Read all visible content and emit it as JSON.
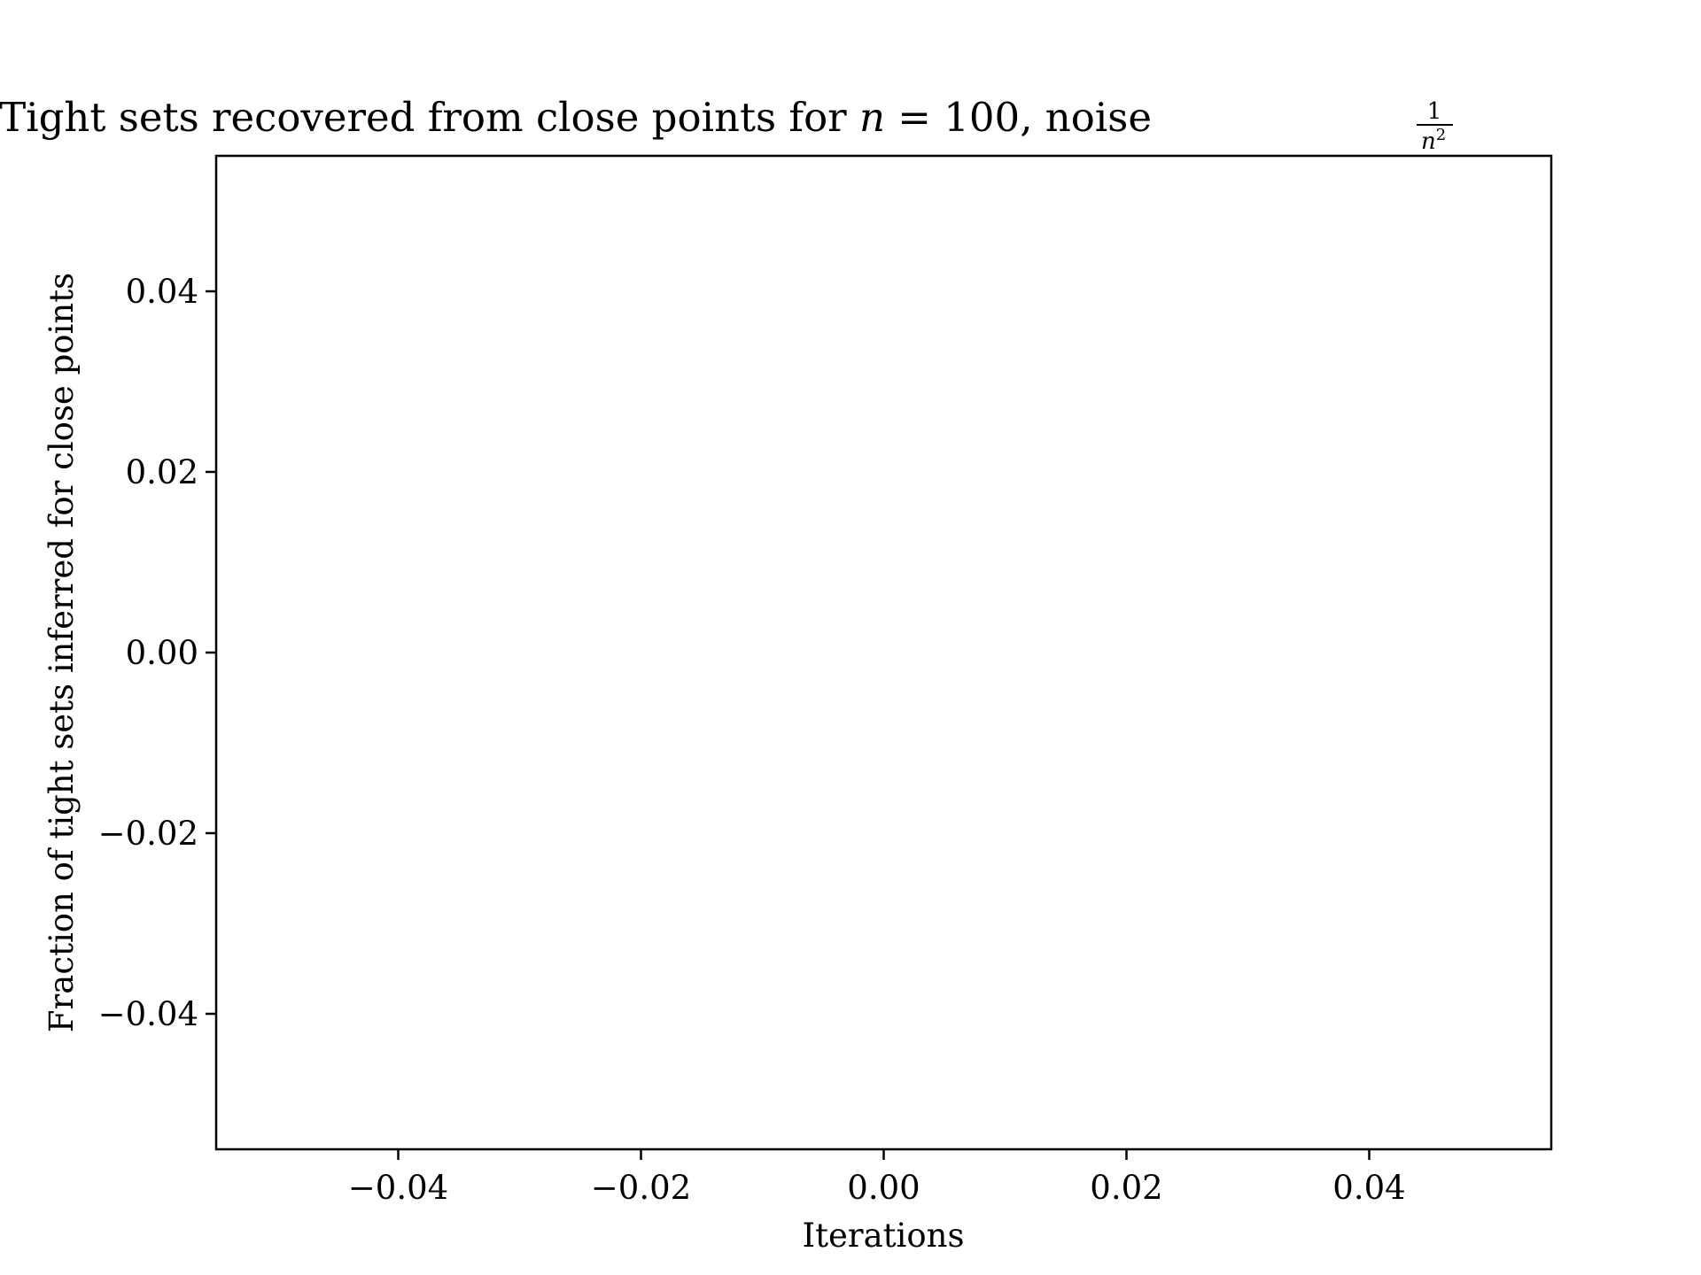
{
  "chart_data": {
    "type": "line",
    "title": {
      "prefix": "Tight sets recovered from close points for ",
      "var": "n",
      "equals": " = 100, noise ",
      "frac_numerator": "1",
      "frac_den_var": "n",
      "frac_den_exp": "2"
    },
    "xlabel": "Iterations",
    "ylabel": "Fraction of tight sets inferred for close points",
    "xlim": [
      -0.055,
      0.055
    ],
    "ylim": [
      -0.055,
      0.055
    ],
    "x_ticks": [
      {
        "value": -0.04,
        "label": "−0.04"
      },
      {
        "value": -0.02,
        "label": "−0.02"
      },
      {
        "value": 0.0,
        "label": "0.00"
      },
      {
        "value": 0.02,
        "label": "0.02"
      },
      {
        "value": 0.04,
        "label": "0.04"
      }
    ],
    "y_ticks": [
      {
        "value": 0.04,
        "label": "0.04"
      },
      {
        "value": 0.02,
        "label": "0.02"
      },
      {
        "value": 0.0,
        "label": "0.00"
      },
      {
        "value": -0.02,
        "label": "−0.02"
      },
      {
        "value": -0.04,
        "label": "−0.04"
      }
    ],
    "series": [],
    "grid": false,
    "legend": "none",
    "colors": {
      "axes": "#000000",
      "background": "#ffffff"
    }
  }
}
